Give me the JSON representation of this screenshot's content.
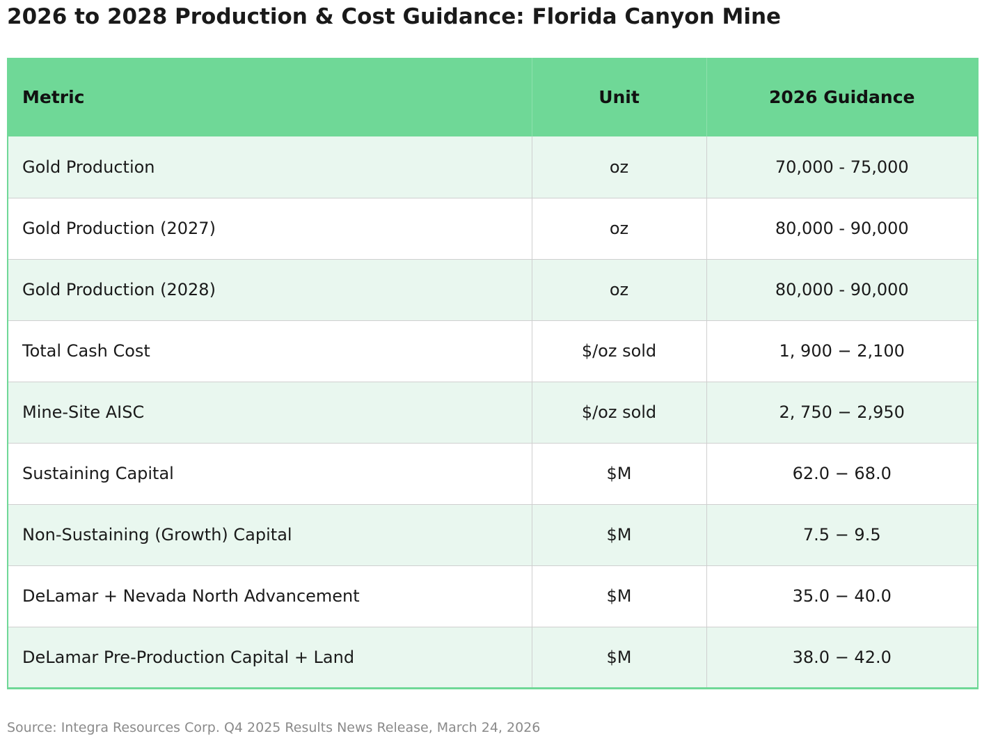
{
  "title": "2026 to 2028 Production & Cost Guidance: Florida Canyon Mine",
  "table": {
    "headers": {
      "metric": "Metric",
      "unit": "Unit",
      "guidance": "2026 Guidance"
    },
    "rows": [
      {
        "metric": "Gold Production",
        "unit": "oz",
        "guidance": "70,000 - 75,000"
      },
      {
        "metric": "Gold Production (2027)",
        "unit": "oz",
        "guidance": "80,000 - 90,000"
      },
      {
        "metric": "Gold Production (2028)",
        "unit": "oz",
        "guidance": "80,000 - 90,000"
      },
      {
        "metric": "Total Cash Cost",
        "unit": "$/oz sold",
        "guidance": "1, 900 − 2,100"
      },
      {
        "metric": "Mine-Site AISC",
        "unit": "$/oz sold",
        "guidance": "2, 750 − 2,950"
      },
      {
        "metric": "Sustaining Capital",
        "unit": "$M",
        "guidance": "62.0 − 68.0"
      },
      {
        "metric": "Non-Sustaining (Growth) Capital",
        "unit": "$M",
        "guidance": "7.5 − 9.5"
      },
      {
        "metric": "DeLamar + Nevada North Advancement",
        "unit": "$M",
        "guidance": "35.0 − 40.0"
      },
      {
        "metric": "DeLamar Pre-Production Capital + Land",
        "unit": "$M",
        "guidance": "38.0 − 42.0"
      }
    ]
  },
  "source": "Source: Integra Resources Corp. Q4 2025 Results News Release, March 24, 2026",
  "colors": {
    "header_bg": "#6fd897",
    "stripe_bg": "#e9f7ef",
    "text": "#1a1a1a",
    "source_text": "#8a8a8a"
  }
}
